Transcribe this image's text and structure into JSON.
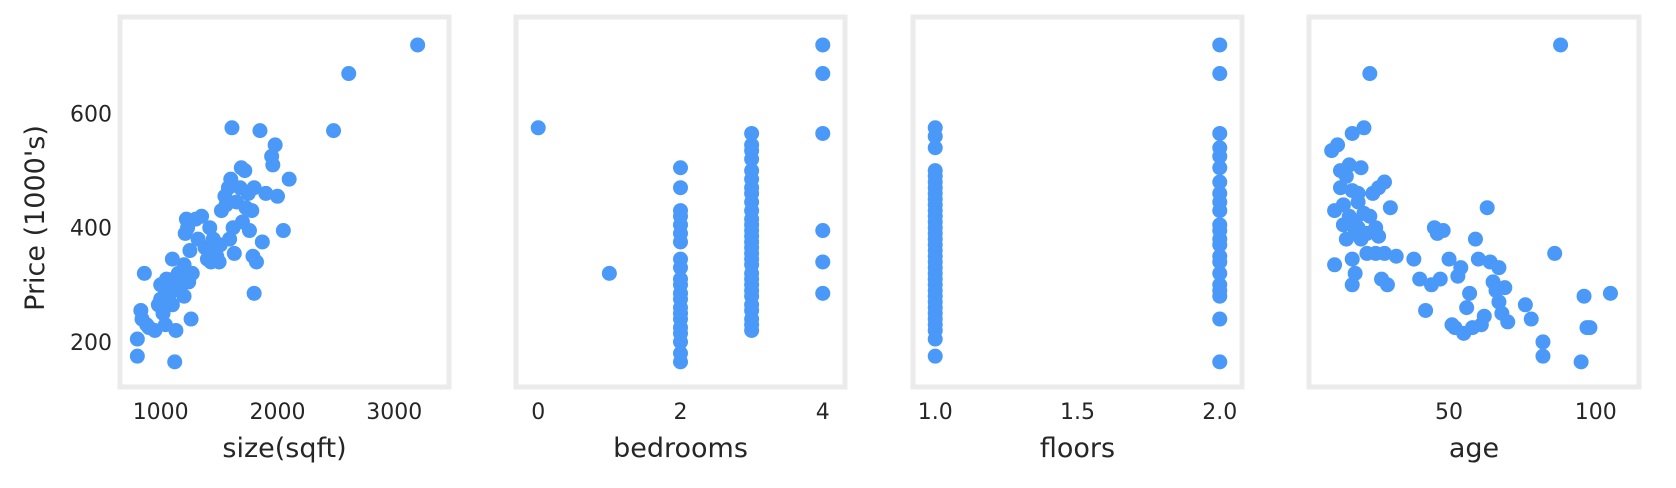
{
  "chart_data": [
    {
      "type": "scatter",
      "xlabel": "size(sqft)",
      "ylabel": "Price (1000's)",
      "xlim": [
        720,
        3400
      ],
      "ylim": [
        135,
        755
      ],
      "xticks": [
        1000,
        2000,
        3000
      ],
      "yticks": [
        200,
        400,
        600
      ],
      "grid": false,
      "color": "#4a98f8",
      "points": [
        [
          800,
          175
        ],
        [
          800,
          205
        ],
        [
          830,
          255
        ],
        [
          840,
          240
        ],
        [
          860,
          320
        ],
        [
          880,
          230
        ],
        [
          900,
          225
        ],
        [
          950,
          220
        ],
        [
          980,
          265
        ],
        [
          1000,
          300
        ],
        [
          1000,
          275
        ],
        [
          1020,
          250
        ],
        [
          1040,
          230
        ],
        [
          1050,
          310
        ],
        [
          1060,
          300
        ],
        [
          1080,
          285
        ],
        [
          1100,
          265
        ],
        [
          1100,
          345
        ],
        [
          1110,
          310
        ],
        [
          1120,
          165
        ],
        [
          1130,
          220
        ],
        [
          1150,
          320
        ],
        [
          1160,
          290
        ],
        [
          1180,
          300
        ],
        [
          1200,
          280
        ],
        [
          1200,
          335
        ],
        [
          1210,
          390
        ],
        [
          1220,
          415
        ],
        [
          1230,
          400
        ],
        [
          1240,
          305
        ],
        [
          1250,
          360
        ],
        [
          1260,
          240
        ],
        [
          1270,
          320
        ],
        [
          1300,
          415
        ],
        [
          1320,
          380
        ],
        [
          1350,
          420
        ],
        [
          1380,
          365
        ],
        [
          1400,
          345
        ],
        [
          1420,
          400
        ],
        [
          1430,
          340
        ],
        [
          1450,
          380
        ],
        [
          1470,
          365
        ],
        [
          1480,
          350
        ],
        [
          1500,
          340
        ],
        [
          1510,
          370
        ],
        [
          1520,
          430
        ],
        [
          1550,
          455
        ],
        [
          1560,
          440
        ],
        [
          1580,
          470
        ],
        [
          1590,
          380
        ],
        [
          1600,
          485
        ],
        [
          1610,
          575
        ],
        [
          1620,
          400
        ],
        [
          1630,
          355
        ],
        [
          1650,
          445
        ],
        [
          1680,
          470
        ],
        [
          1690,
          505
        ],
        [
          1700,
          410
        ],
        [
          1720,
          500
        ],
        [
          1730,
          435
        ],
        [
          1750,
          460
        ],
        [
          1760,
          395
        ],
        [
          1780,
          430
        ],
        [
          1790,
          350
        ],
        [
          1800,
          470
        ],
        [
          1800,
          285
        ],
        [
          1820,
          340
        ],
        [
          1850,
          570
        ],
        [
          1870,
          375
        ],
        [
          1900,
          460
        ],
        [
          1950,
          525
        ],
        [
          1960,
          510
        ],
        [
          1980,
          545
        ],
        [
          2000,
          455
        ],
        [
          2050,
          395
        ],
        [
          2100,
          485
        ],
        [
          2480,
          570
        ],
        [
          2610,
          670
        ],
        [
          3200,
          720
        ]
      ]
    },
    {
      "type": "scatter",
      "xlabel": "bedrooms",
      "ylabel": "",
      "xlim": [
        -0.2,
        4.2
      ],
      "ylim": [
        135,
        755
      ],
      "xticks": [
        0,
        2,
        4
      ],
      "yticks": [],
      "grid": false,
      "color": "#4a98f8",
      "points": [
        [
          0,
          575
        ],
        [
          1,
          320
        ],
        [
          2,
          165
        ],
        [
          2,
          180
        ],
        [
          2,
          200
        ],
        [
          2,
          215
        ],
        [
          2,
          225
        ],
        [
          2,
          240
        ],
        [
          2,
          250
        ],
        [
          2,
          260
        ],
        [
          2,
          275
        ],
        [
          2,
          285
        ],
        [
          2,
          300
        ],
        [
          2,
          310
        ],
        [
          2,
          330
        ],
        [
          2,
          345
        ],
        [
          2,
          375
        ],
        [
          2,
          390
        ],
        [
          2,
          405
        ],
        [
          2,
          420
        ],
        [
          2,
          430
        ],
        [
          2,
          470
        ],
        [
          2,
          505
        ],
        [
          3,
          220
        ],
        [
          3,
          230
        ],
        [
          3,
          240
        ],
        [
          3,
          255
        ],
        [
          3,
          265
        ],
        [
          3,
          280
        ],
        [
          3,
          290
        ],
        [
          3,
          300
        ],
        [
          3,
          310
        ],
        [
          3,
          320
        ],
        [
          3,
          335
        ],
        [
          3,
          345
        ],
        [
          3,
          355
        ],
        [
          3,
          365
        ],
        [
          3,
          375
        ],
        [
          3,
          385
        ],
        [
          3,
          395
        ],
        [
          3,
          405
        ],
        [
          3,
          415
        ],
        [
          3,
          430
        ],
        [
          3,
          445
        ],
        [
          3,
          460
        ],
        [
          3,
          470
        ],
        [
          3,
          485
        ],
        [
          3,
          500
        ],
        [
          3,
          520
        ],
        [
          3,
          535
        ],
        [
          3,
          545
        ],
        [
          3,
          565
        ],
        [
          4,
          285
        ],
        [
          4,
          340
        ],
        [
          4,
          395
        ],
        [
          4,
          565
        ],
        [
          4,
          670
        ],
        [
          4,
          720
        ]
      ]
    },
    {
      "type": "scatter",
      "xlabel": "floors",
      "ylabel": "",
      "xlim": [
        0.95,
        2.05
      ],
      "ylim": [
        135,
        755
      ],
      "xticks": [
        1.0,
        1.5,
        2.0
      ],
      "tick_labels": [
        "1.0",
        "1.5",
        "2.0"
      ],
      "yticks": [],
      "grid": false,
      "color": "#4a98f8",
      "points": [
        [
          1,
          175
        ],
        [
          1,
          205
        ],
        [
          1,
          220
        ],
        [
          1,
          230
        ],
        [
          1,
          240
        ],
        [
          1,
          250
        ],
        [
          1,
          260
        ],
        [
          1,
          270
        ],
        [
          1,
          280
        ],
        [
          1,
          290
        ],
        [
          1,
          300
        ],
        [
          1,
          310
        ],
        [
          1,
          320
        ],
        [
          1,
          330
        ],
        [
          1,
          340
        ],
        [
          1,
          350
        ],
        [
          1,
          360
        ],
        [
          1,
          370
        ],
        [
          1,
          380
        ],
        [
          1,
          390
        ],
        [
          1,
          400
        ],
        [
          1,
          410
        ],
        [
          1,
          420
        ],
        [
          1,
          430
        ],
        [
          1,
          440
        ],
        [
          1,
          450
        ],
        [
          1,
          460
        ],
        [
          1,
          470
        ],
        [
          1,
          480
        ],
        [
          1,
          490
        ],
        [
          1,
          500
        ],
        [
          1,
          540
        ],
        [
          1,
          560
        ],
        [
          1,
          575
        ],
        [
          2,
          165
        ],
        [
          2,
          240
        ],
        [
          2,
          280
        ],
        [
          2,
          290
        ],
        [
          2,
          300
        ],
        [
          2,
          320
        ],
        [
          2,
          340
        ],
        [
          2,
          350
        ],
        [
          2,
          370
        ],
        [
          2,
          380
        ],
        [
          2,
          395
        ],
        [
          2,
          405
        ],
        [
          2,
          430
        ],
        [
          2,
          445
        ],
        [
          2,
          460
        ],
        [
          2,
          480
        ],
        [
          2,
          505
        ],
        [
          2,
          525
        ],
        [
          2,
          540
        ],
        [
          2,
          565
        ],
        [
          2,
          670
        ],
        [
          2,
          720
        ]
      ]
    },
    {
      "type": "scatter",
      "xlabel": "age",
      "ylabel": "",
      "xlim": [
        5,
        112
      ],
      "ylim": [
        135,
        755
      ],
      "xticks": [
        50,
        100
      ],
      "yticks": [],
      "grid": false,
      "color": "#4a98f8",
      "points": [
        [
          10,
          535
        ],
        [
          11,
          335
        ],
        [
          11,
          430
        ],
        [
          12,
          545
        ],
        [
          13,
          470
        ],
        [
          13,
          500
        ],
        [
          14,
          405
        ],
        [
          14,
          440
        ],
        [
          15,
          380
        ],
        [
          15,
          490
        ],
        [
          16,
          420
        ],
        [
          16,
          510
        ],
        [
          17,
          300
        ],
        [
          17,
          345
        ],
        [
          17,
          465
        ],
        [
          17,
          565
        ],
        [
          18,
          320
        ],
        [
          18,
          390
        ],
        [
          18,
          410
        ],
        [
          19,
          400
        ],
        [
          19,
          460
        ],
        [
          19,
          445
        ],
        [
          20,
          505
        ],
        [
          20,
          380
        ],
        [
          21,
          575
        ],
        [
          21,
          425
        ],
        [
          22,
          390
        ],
        [
          22,
          355
        ],
        [
          23,
          420
        ],
        [
          23,
          670
        ],
        [
          24,
          460
        ],
        [
          25,
          400
        ],
        [
          25,
          355
        ],
        [
          26,
          470
        ],
        [
          26,
          385
        ],
        [
          27,
          310
        ],
        [
          28,
          480
        ],
        [
          28,
          355
        ],
        [
          29,
          300
        ],
        [
          30,
          435
        ],
        [
          32,
          350
        ],
        [
          38,
          345
        ],
        [
          40,
          310
        ],
        [
          42,
          255
        ],
        [
          44,
          300
        ],
        [
          45,
          400
        ],
        [
          46,
          390
        ],
        [
          47,
          310
        ],
        [
          48,
          395
        ],
        [
          50,
          345
        ],
        [
          51,
          230
        ],
        [
          52,
          225
        ],
        [
          53,
          315
        ],
        [
          54,
          330
        ],
        [
          55,
          215
        ],
        [
          56,
          260
        ],
        [
          57,
          285
        ],
        [
          58,
          225
        ],
        [
          59,
          380
        ],
        [
          60,
          345
        ],
        [
          61,
          230
        ],
        [
          62,
          245
        ],
        [
          63,
          435
        ],
        [
          64,
          340
        ],
        [
          65,
          305
        ],
        [
          66,
          290
        ],
        [
          67,
          270
        ],
        [
          67,
          330
        ],
        [
          68,
          250
        ],
        [
          69,
          295
        ],
        [
          70,
          235
        ],
        [
          76,
          265
        ],
        [
          78,
          240
        ],
        [
          82,
          200
        ],
        [
          82,
          175
        ],
        [
          86,
          355
        ],
        [
          88,
          720
        ],
        [
          95,
          165
        ],
        [
          96,
          280
        ],
        [
          97,
          225
        ],
        [
          98,
          225
        ],
        [
          105,
          285
        ]
      ]
    }
  ]
}
